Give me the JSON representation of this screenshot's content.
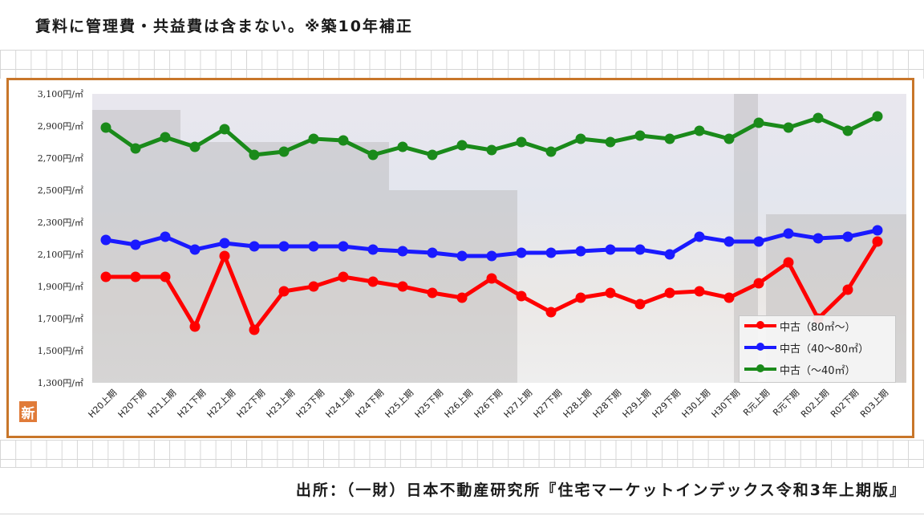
{
  "header": {
    "note": "賃料に管理費・共益費は含まない。※築10年補正"
  },
  "footer": {
    "source": "出所：（一財）日本不動産研究所『住宅マーケットインデックス令和3年上期版』"
  },
  "badge": {
    "label": "新"
  },
  "colors": {
    "frame": "#c8762a",
    "red": "#ff0000",
    "blue": "#1a1aff",
    "green": "#1a8a1a"
  },
  "chart_data": {
    "type": "line",
    "title": "",
    "xlabel": "",
    "ylabel": "",
    "ylim": [
      1300,
      3100
    ],
    "yticks": [
      "3,100円/㎡",
      "2,900円/㎡",
      "2,700円/㎡",
      "2,500円/㎡",
      "2,300円/㎡",
      "2,100円/㎡",
      "1,900円/㎡",
      "1,700円/㎡",
      "1,500円/㎡",
      "1,300円/㎡"
    ],
    "ytick_values": [
      3100,
      2900,
      2700,
      2500,
      2300,
      2100,
      1900,
      1700,
      1500,
      1300
    ],
    "categories": [
      "H20上期",
      "H20下期",
      "H21上期",
      "H21下期",
      "H22上期",
      "H22下期",
      "H23上期",
      "H23下期",
      "H24上期",
      "H24下期",
      "H25上期",
      "H25下期",
      "H26上期",
      "H26下期",
      "H27上期",
      "H27下期",
      "H28上期",
      "H28下期",
      "H29上期",
      "H29下期",
      "H30上期",
      "H30下期",
      "R元上期",
      "R元下期",
      "R02上期",
      "R02下期",
      "R03上期"
    ],
    "legend_position": "bottom-right",
    "series": [
      {
        "name": "中古（80㎡～）",
        "color": "#ff0000",
        "values": [
          1960,
          1960,
          1960,
          1650,
          2090,
          1630,
          1870,
          1900,
          1960,
          1930,
          1900,
          1860,
          1830,
          1950,
          1840,
          1740,
          1830,
          1860,
          1790,
          1860,
          1870,
          1830,
          1920,
          2050,
          1700,
          1880,
          2180
        ]
      },
      {
        "name": "中古（40～80㎡）",
        "color": "#1a1aff",
        "values": [
          2190,
          2160,
          2210,
          2130,
          2170,
          2150,
          2150,
          2150,
          2150,
          2130,
          2120,
          2110,
          2090,
          2090,
          2110,
          2110,
          2120,
          2130,
          2130,
          2100,
          2210,
          2180,
          2180,
          2230,
          2200,
          2210,
          2250
        ]
      },
      {
        "name": "中古（～40㎡）",
        "color": "#1a8a1a",
        "values": [
          2890,
          2760,
          2830,
          2770,
          2880,
          2720,
          2740,
          2820,
          2810,
          2720,
          2770,
          2720,
          2780,
          2750,
          2800,
          2740,
          2820,
          2800,
          2840,
          2820,
          2870,
          2820,
          2920,
          2890,
          2950,
          2870,
          2960
        ]
      }
    ]
  }
}
